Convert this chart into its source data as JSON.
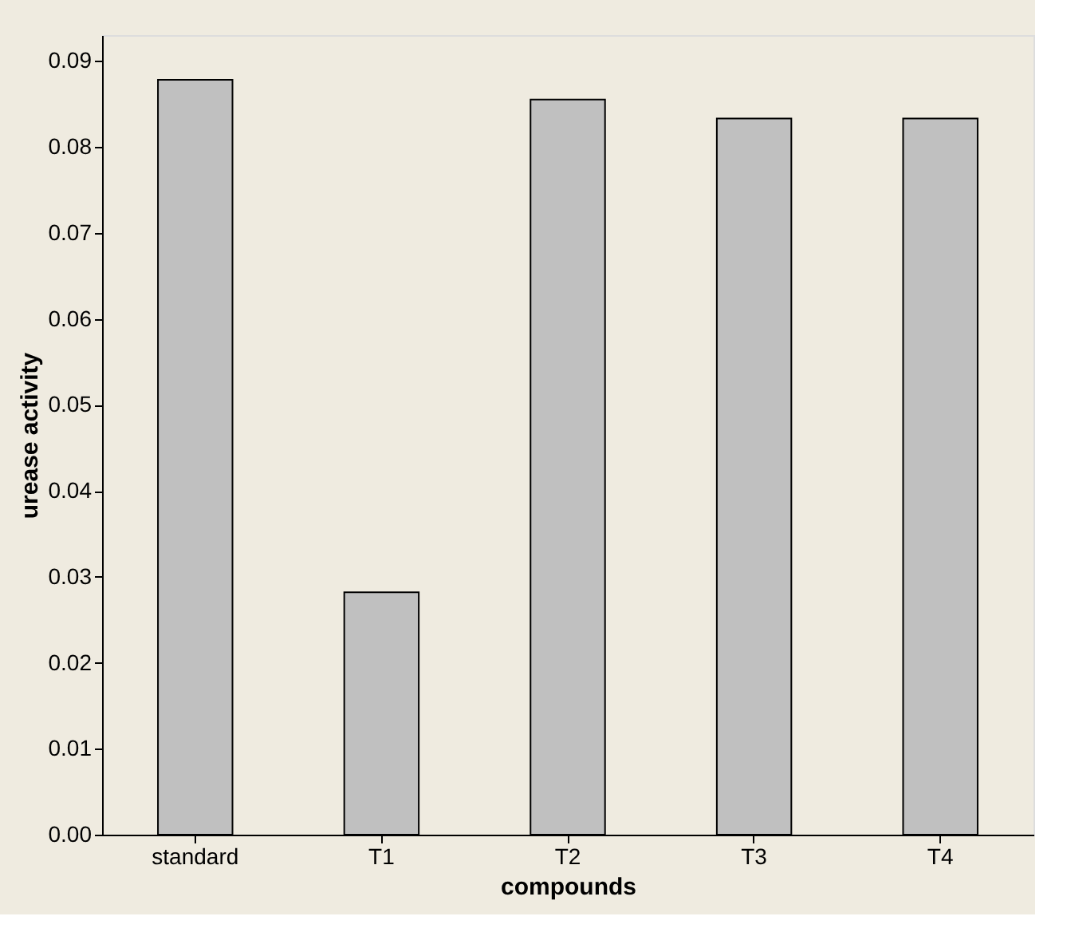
{
  "chart_data": {
    "type": "bar",
    "xlabel": "compounds",
    "ylabel": "urease activity",
    "categories": [
      "standard",
      "T1",
      "T2",
      "T3",
      "T4"
    ],
    "values": [
      0.0878,
      0.0282,
      0.0855,
      0.0833,
      0.0833
    ],
    "color": "#c0c0c0",
    "ylim": [
      0,
      0.093
    ],
    "yticks": [
      {
        "value": 0,
        "label": "0.00"
      },
      {
        "value": 0.01,
        "label": "0.01"
      },
      {
        "value": 0.02,
        "label": "0.02"
      },
      {
        "value": 0.03,
        "label": "0.03"
      },
      {
        "value": 0.04,
        "label": "0.04"
      },
      {
        "value": 0.05,
        "label": "0.05"
      },
      {
        "value": 0.06,
        "label": "0.06"
      },
      {
        "value": 0.07,
        "label": "0.07"
      },
      {
        "value": 0.08,
        "label": "0.08"
      },
      {
        "value": 0.09,
        "label": "0.09"
      }
    ],
    "grid": false
  }
}
